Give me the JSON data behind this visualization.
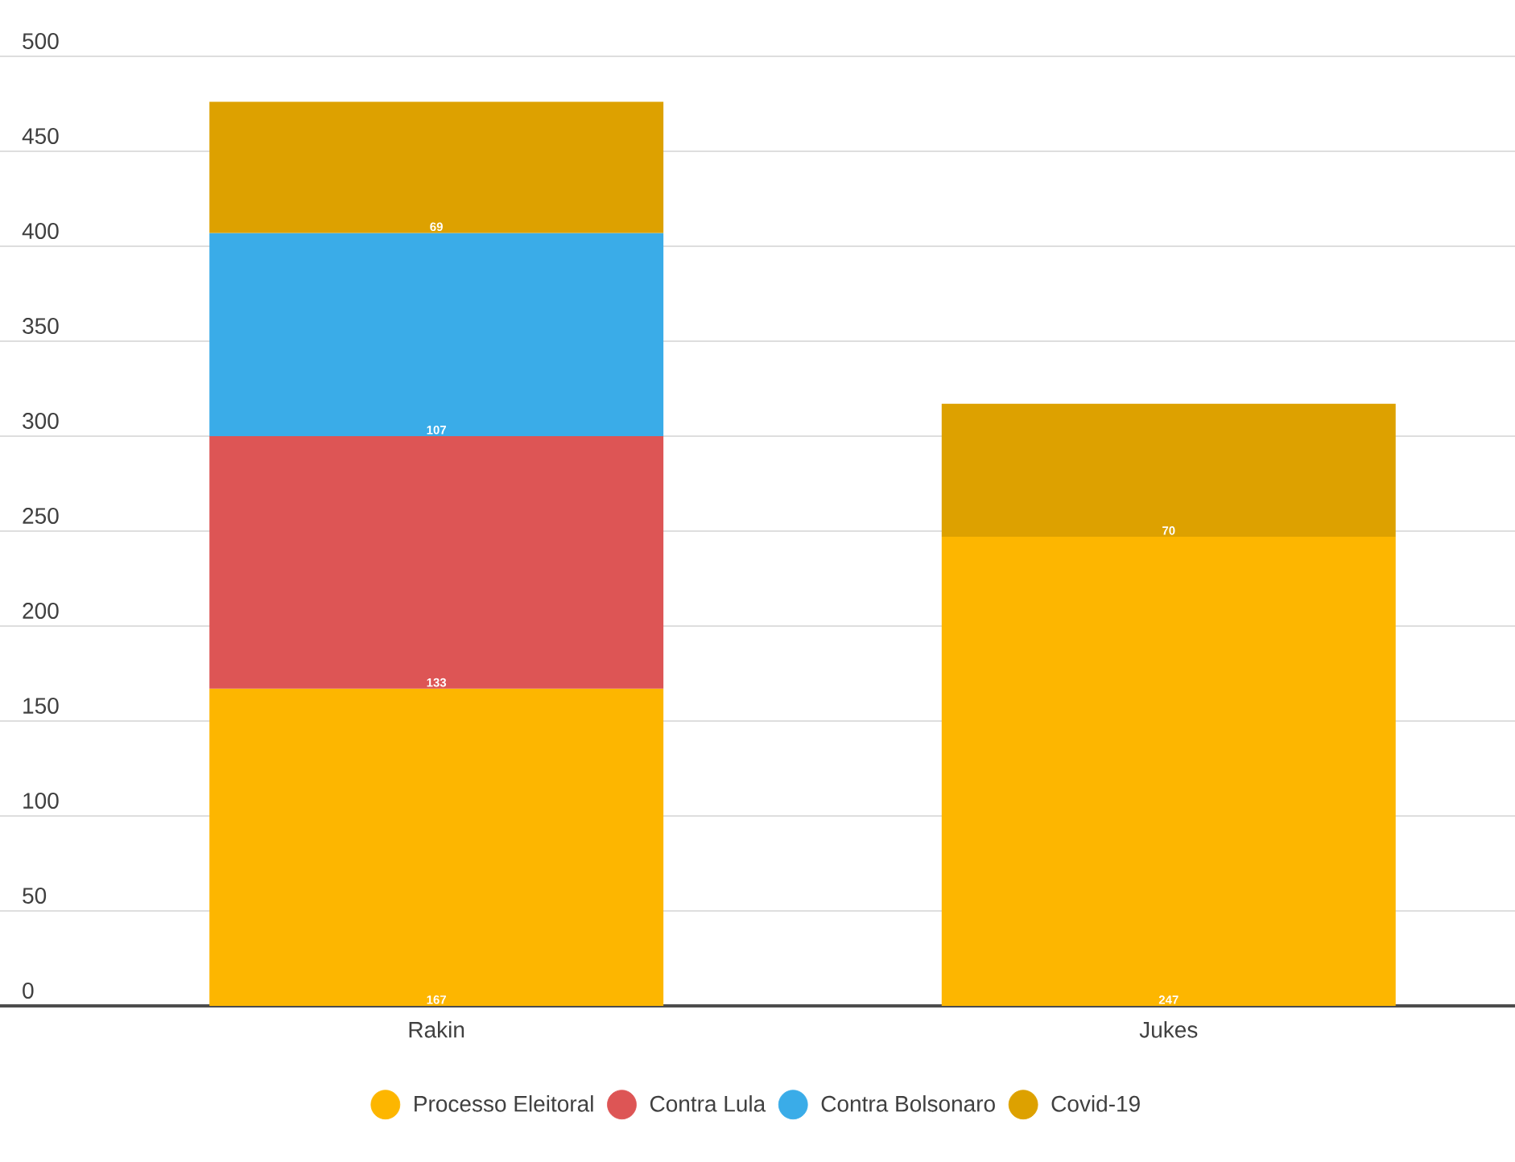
{
  "chart_data": {
    "type": "bar",
    "stacked": true,
    "categories": [
      "Rakin",
      "Jukes"
    ],
    "series": [
      {
        "name": "Processo Eleitoral",
        "color": "#fdb600",
        "values": [
          167,
          247
        ]
      },
      {
        "name": "Contra Lula",
        "color": "#dd5555",
        "values": [
          133,
          null
        ]
      },
      {
        "name": "Contra Bolsonaro",
        "color": "#3aace8",
        "values": [
          107,
          null
        ]
      },
      {
        "name": "Covid-19",
        "color": "#dda100",
        "values": [
          69,
          70
        ]
      }
    ],
    "ylim": [
      0,
      500
    ],
    "yticks": [
      0,
      50,
      100,
      150,
      200,
      250,
      300,
      350,
      400,
      450,
      500
    ],
    "grid": "y",
    "legend": "bottom",
    "data_labels": true
  }
}
